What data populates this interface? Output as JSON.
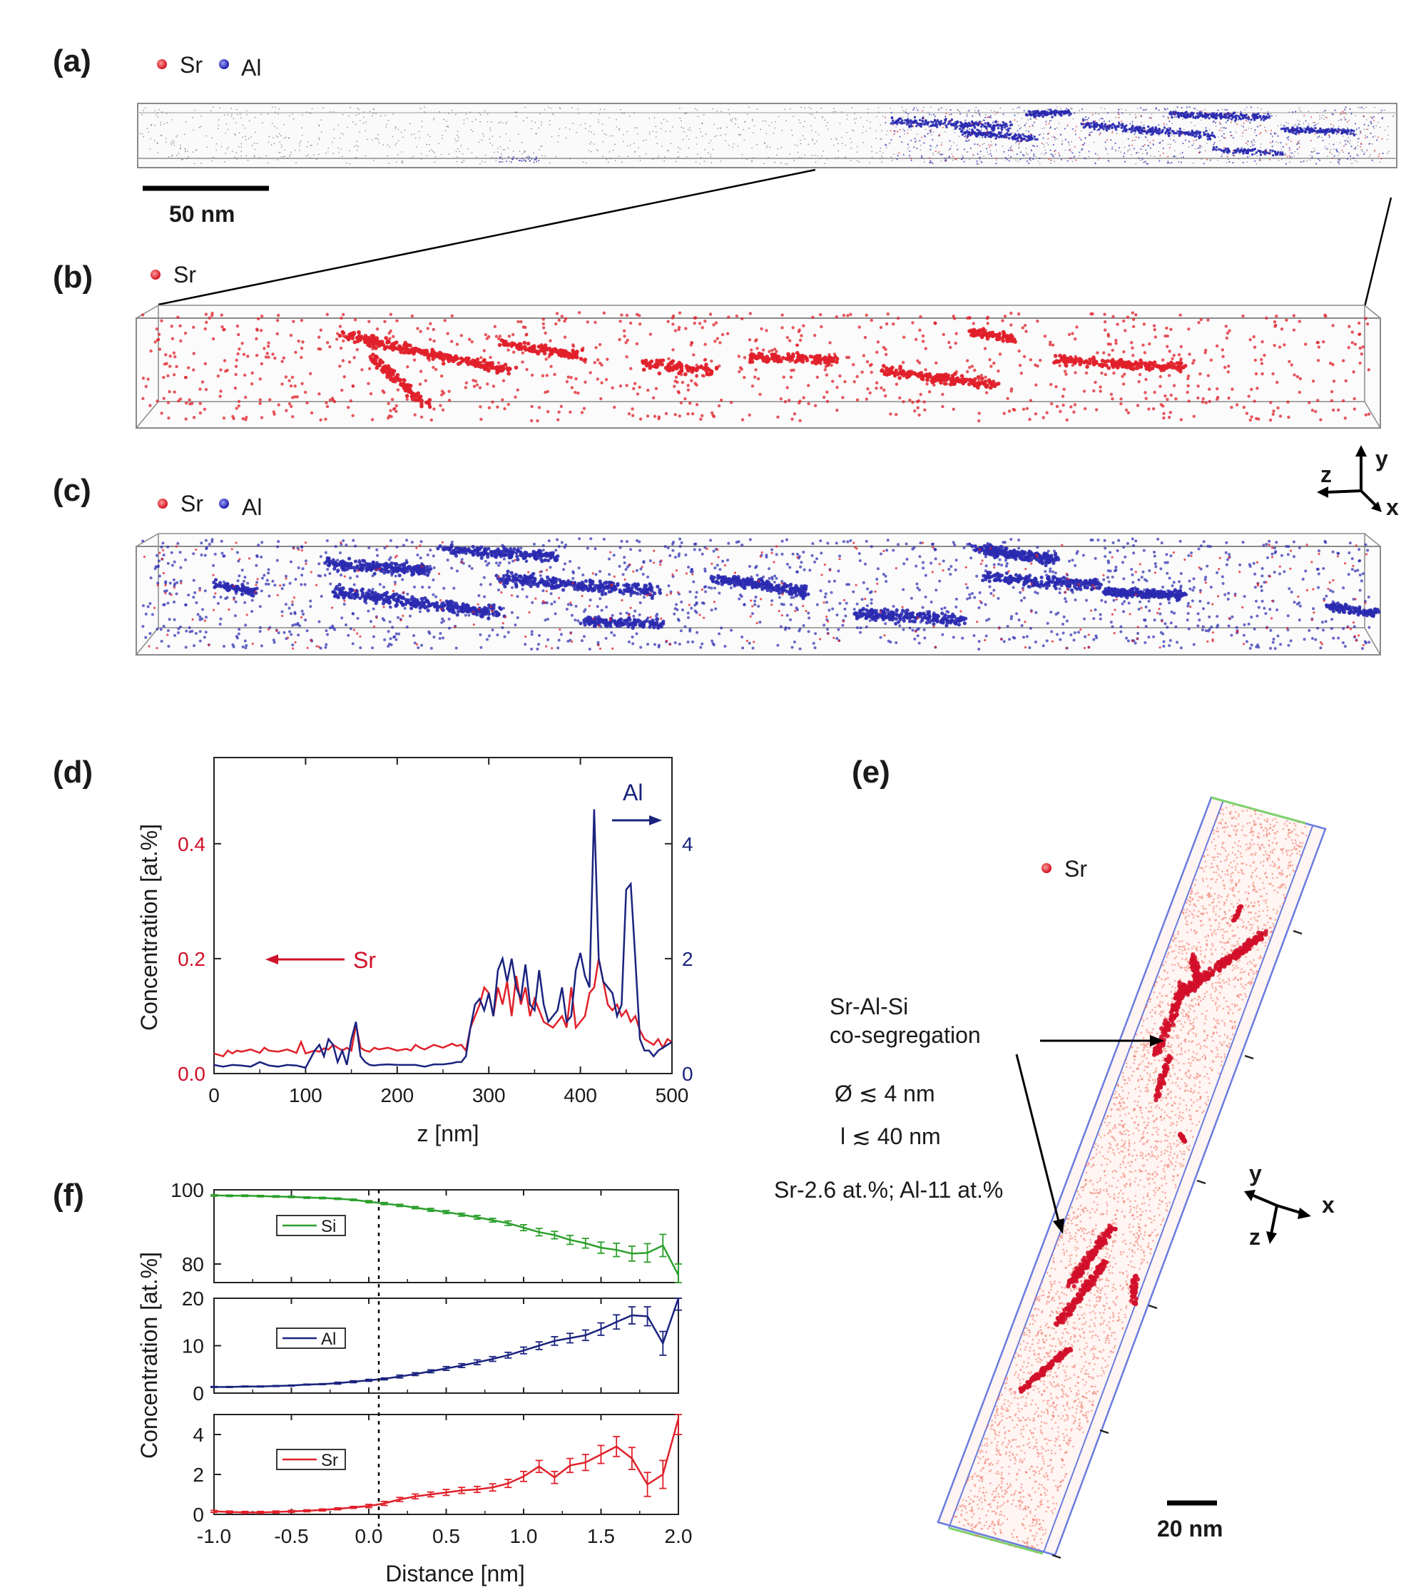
{
  "colors": {
    "sr": "#e0202a",
    "al": "#2a2ab0",
    "si": "#2ca02c",
    "sr_axis": "#d0102a",
    "al_axis": "#1a237e",
    "box": "#8a8a8a",
    "tube": "#6a7be0"
  },
  "panels": {
    "a": {
      "label": "(a)",
      "legend": [
        "Sr",
        "Al"
      ],
      "scalebar": "50 nm"
    },
    "b": {
      "label": "(b)",
      "legend": [
        "Sr"
      ]
    },
    "c": {
      "label": "(c)",
      "legend": [
        "Sr",
        "Al"
      ],
      "axes": [
        "z",
        "y",
        "x"
      ]
    },
    "d": {
      "label": "(d)",
      "sr_label": "Sr",
      "al_label": "Al"
    },
    "e": {
      "label": "(e)",
      "legend": [
        "Sr"
      ],
      "annotation": [
        "Sr-Al-Si",
        "co-segregation"
      ],
      "diameter": "Ø ≲ 4 nm",
      "length": "l ≲ 40 nm",
      "composition": "Sr-2.6 at.%;  Al-11 at.%",
      "axes": [
        "y",
        "x",
        "z"
      ],
      "scalebar": "20 nm"
    },
    "f": {
      "label": "(f)"
    }
  },
  "chart_data": [
    {
      "type": "line",
      "panel": "d",
      "xlabel": "z [nm]",
      "ylabel": "Concentration [at.%]",
      "xlim": [
        0,
        500
      ],
      "ylim_left": [
        0,
        0.55
      ],
      "ylim_right": [
        0,
        5.5
      ],
      "xticks": [
        0,
        100,
        200,
        300,
        400,
        500
      ],
      "yticks_left": [
        "0.0",
        "0.2",
        "0.4"
      ],
      "yticks_right": [
        "0",
        "2",
        "4"
      ],
      "series": [
        {
          "name": "Sr",
          "axis": "left",
          "x": [
            0,
            10,
            15,
            20,
            25,
            30,
            40,
            50,
            55,
            60,
            70,
            80,
            90,
            95,
            100,
            110,
            115,
            120,
            125,
            130,
            140,
            145,
            150,
            155,
            160,
            165,
            170,
            175,
            180,
            190,
            200,
            210,
            215,
            220,
            225,
            230,
            240,
            250,
            260,
            265,
            270,
            275,
            280,
            290,
            295,
            300,
            305,
            310,
            315,
            320,
            325,
            330,
            335,
            340,
            345,
            350,
            360,
            370,
            375,
            380,
            385,
            390,
            395,
            400,
            405,
            410,
            415,
            420,
            425,
            430,
            435,
            440,
            445,
            450,
            455,
            460,
            465,
            470,
            475,
            480,
            485,
            490,
            495,
            500
          ],
          "values": [
            0.035,
            0.03,
            0.04,
            0.035,
            0.04,
            0.038,
            0.042,
            0.036,
            0.045,
            0.04,
            0.038,
            0.042,
            0.036,
            0.055,
            0.035,
            0.04,
            0.038,
            0.044,
            0.042,
            0.05,
            0.04,
            0.045,
            0.04,
            0.085,
            0.045,
            0.04,
            0.038,
            0.045,
            0.042,
            0.045,
            0.04,
            0.043,
            0.04,
            0.05,
            0.045,
            0.042,
            0.05,
            0.045,
            0.052,
            0.048,
            0.05,
            0.04,
            0.08,
            0.12,
            0.15,
            0.14,
            0.1,
            0.15,
            0.12,
            0.16,
            0.1,
            0.17,
            0.12,
            0.15,
            0.1,
            0.13,
            0.09,
            0.08,
            0.09,
            0.1,
            0.08,
            0.15,
            0.08,
            0.09,
            0.1,
            0.14,
            0.15,
            0.2,
            0.16,
            0.12,
            0.11,
            0.12,
            0.1,
            0.11,
            0.09,
            0.1,
            0.075,
            0.06,
            0.055,
            0.05,
            0.06,
            0.045,
            0.06,
            0.055
          ]
        },
        {
          "name": "Al",
          "axis": "right",
          "x": [
            0,
            10,
            20,
            30,
            40,
            50,
            60,
            70,
            80,
            90,
            100,
            110,
            115,
            120,
            125,
            130,
            135,
            140,
            145,
            150,
            155,
            160,
            165,
            170,
            175,
            180,
            190,
            200,
            210,
            220,
            230,
            240,
            250,
            260,
            265,
            270,
            275,
            280,
            285,
            290,
            295,
            300,
            305,
            310,
            315,
            320,
            325,
            330,
            335,
            340,
            345,
            350,
            355,
            360,
            365,
            370,
            375,
            380,
            385,
            390,
            395,
            400,
            405,
            410,
            415,
            420,
            425,
            430,
            435,
            440,
            445,
            450,
            455,
            460,
            465,
            470,
            475,
            480,
            485,
            490,
            495,
            500
          ],
          "values": [
            0.15,
            0.12,
            0.15,
            0.14,
            0.12,
            0.2,
            0.14,
            0.12,
            0.15,
            0.14,
            0.1,
            0.4,
            0.5,
            0.3,
            0.6,
            0.5,
            0.2,
            0.4,
            0.15,
            0.6,
            0.9,
            0.3,
            0.2,
            0.15,
            0.14,
            0.15,
            0.16,
            0.15,
            0.15,
            0.15,
            0.12,
            0.16,
            0.16,
            0.18,
            0.2,
            0.2,
            0.3,
            0.8,
            1.2,
            1.3,
            1.1,
            1.4,
            1.0,
            1.8,
            2.0,
            1.6,
            2.0,
            1.5,
            1.3,
            1.9,
            1.2,
            1.1,
            1.8,
            1.2,
            0.9,
            1.0,
            1.1,
            1.5,
            0.9,
            1.0,
            1.8,
            2.1,
            1.7,
            1.5,
            4.6,
            2.0,
            1.6,
            1.5,
            1.4,
            1.0,
            1.2,
            3.2,
            3.3,
            2.0,
            0.6,
            0.4,
            0.4,
            0.3,
            0.4,
            0.45,
            0.5,
            0.55
          ]
        }
      ]
    },
    {
      "type": "line",
      "panel": "f",
      "xlabel": "Distance [nm]",
      "ylabel": "Concentration [at.%]",
      "xlim": [
        -1.0,
        2.0
      ],
      "xticks": [
        "-1.0",
        "-0.5",
        "0.0",
        "0.5",
        "1.0",
        "1.5",
        "2.0"
      ],
      "x": [
        -1.0,
        -0.9,
        -0.8,
        -0.7,
        -0.6,
        -0.5,
        -0.4,
        -0.3,
        -0.2,
        -0.1,
        0.0,
        0.1,
        0.2,
        0.3,
        0.4,
        0.5,
        0.6,
        0.7,
        0.8,
        0.9,
        1.0,
        1.1,
        1.2,
        1.3,
        1.4,
        1.5,
        1.6,
        1.7,
        1.8,
        1.9,
        2.0
      ],
      "series": [
        {
          "name": "Si",
          "ylim": [
            75,
            100
          ],
          "yticks": [
            "80",
            "100"
          ],
          "values": [
            98.5,
            98.4,
            98.4,
            98.3,
            98.2,
            98.1,
            97.9,
            97.8,
            97.6,
            97.3,
            96.8,
            96.3,
            95.8,
            95.2,
            94.6,
            94.0,
            93.3,
            92.6,
            91.8,
            91.0,
            89.8,
            88.6,
            87.8,
            86.5,
            85.6,
            84.4,
            83.8,
            82.8,
            83.0,
            85.0,
            77.0
          ],
          "err": [
            0.2,
            0.2,
            0.2,
            0.2,
            0.2,
            0.2,
            0.2,
            0.2,
            0.2,
            0.2,
            0.3,
            0.3,
            0.3,
            0.3,
            0.4,
            0.4,
            0.4,
            0.5,
            0.5,
            0.6,
            0.8,
            1.0,
            1.0,
            1.2,
            1.3,
            1.5,
            1.8,
            2.0,
            2.5,
            3.0,
            3.0
          ]
        },
        {
          "name": "Al",
          "ylim": [
            0,
            20
          ],
          "yticks": [
            "0",
            "10",
            "20"
          ],
          "values": [
            1.3,
            1.3,
            1.4,
            1.4,
            1.5,
            1.6,
            1.8,
            1.9,
            2.1,
            2.4,
            2.7,
            3.0,
            3.5,
            4.0,
            4.6,
            5.2,
            5.8,
            6.5,
            7.2,
            8.0,
            9.0,
            10.0,
            11.0,
            11.6,
            12.2,
            13.5,
            15.0,
            16.4,
            16.2,
            10.5,
            20.0
          ],
          "err": [
            0.1,
            0.1,
            0.1,
            0.1,
            0.1,
            0.1,
            0.1,
            0.1,
            0.2,
            0.2,
            0.2,
            0.2,
            0.3,
            0.3,
            0.3,
            0.4,
            0.4,
            0.5,
            0.5,
            0.6,
            0.7,
            0.8,
            0.9,
            1.0,
            1.1,
            1.3,
            1.5,
            1.8,
            2.0,
            2.5,
            2.5
          ]
        },
        {
          "name": "Sr",
          "ylim": [
            0,
            5
          ],
          "yticks": [
            "0",
            "2",
            "4"
          ],
          "values": [
            0.15,
            0.12,
            0.1,
            0.1,
            0.12,
            0.15,
            0.18,
            0.22,
            0.28,
            0.35,
            0.42,
            0.55,
            0.75,
            0.9,
            1.0,
            1.1,
            1.2,
            1.25,
            1.35,
            1.55,
            1.9,
            2.4,
            1.85,
            2.45,
            2.6,
            3.0,
            3.4,
            2.8,
            1.5,
            2.0,
            4.8
          ],
          "err": [
            0.05,
            0.05,
            0.05,
            0.05,
            0.05,
            0.05,
            0.05,
            0.05,
            0.05,
            0.05,
            0.08,
            0.1,
            0.1,
            0.12,
            0.12,
            0.15,
            0.15,
            0.15,
            0.18,
            0.2,
            0.25,
            0.3,
            0.3,
            0.35,
            0.4,
            0.45,
            0.5,
            0.55,
            0.6,
            0.7,
            0.8
          ]
        }
      ]
    }
  ]
}
